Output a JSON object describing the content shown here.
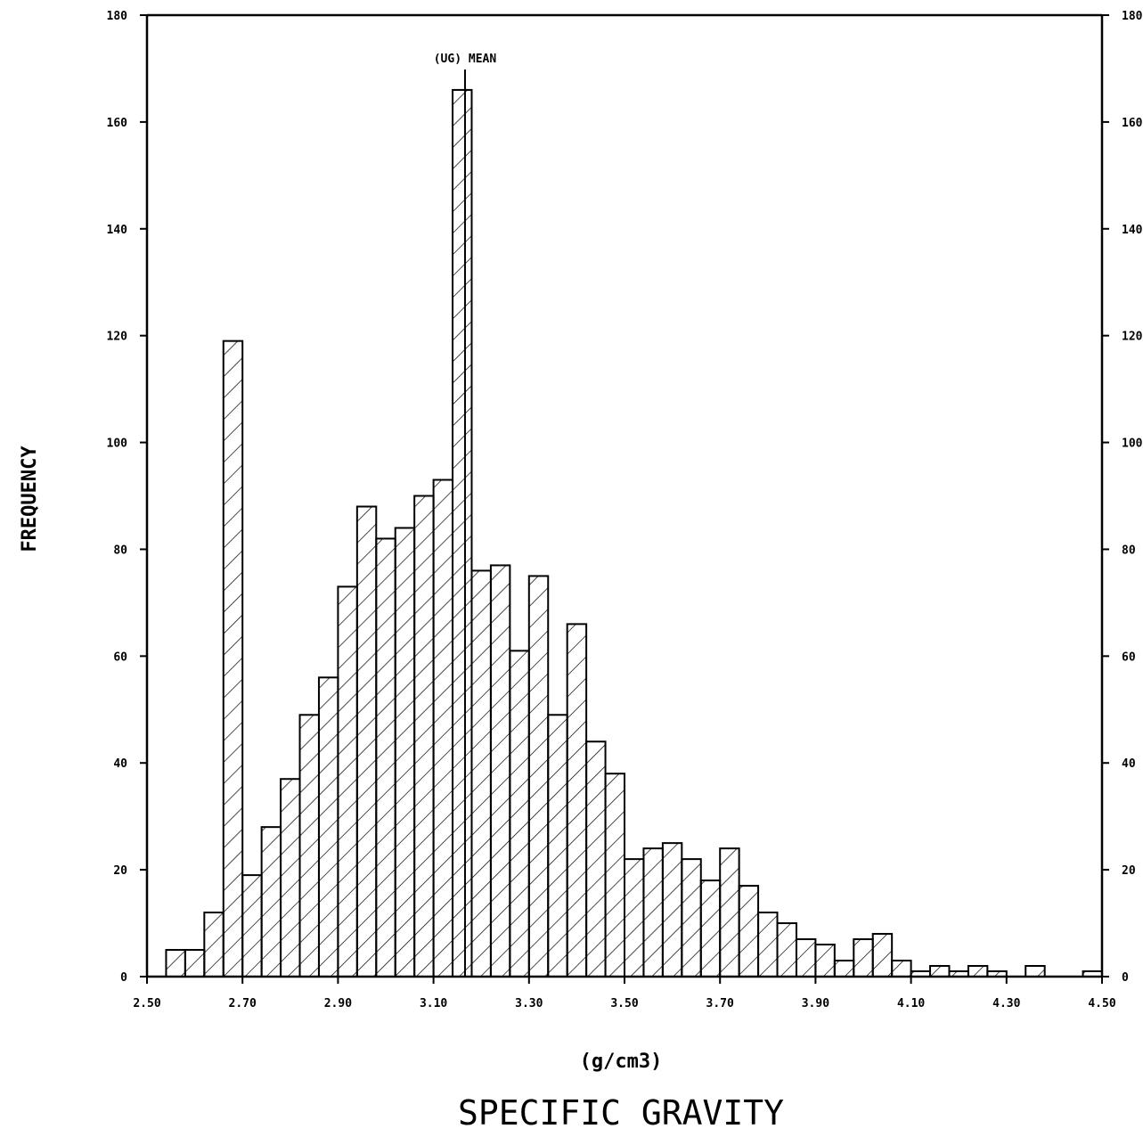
{
  "chart_data": {
    "type": "bar",
    "title": "SPECIFIC GRAVITY",
    "xlabel": "(g/cm3)",
    "ylabel": "FREQUENCY",
    "xlim": [
      2.5,
      4.5
    ],
    "ylim": [
      0,
      180
    ],
    "x_ticks": [
      "2.50",
      "2.70",
      "2.90",
      "3.10",
      "3.30",
      "3.50",
      "3.70",
      "3.90",
      "4.10",
      "4.30",
      "4.50"
    ],
    "x_tick_values": [
      2.5,
      2.7,
      2.9,
      3.1,
      3.3,
      3.5,
      3.7,
      3.9,
      4.1,
      4.3,
      4.5
    ],
    "y_ticks": [
      "0",
      "20",
      "40",
      "60",
      "80",
      "100",
      "120",
      "140",
      "160",
      "180"
    ],
    "y_tick_values": [
      0,
      20,
      40,
      60,
      80,
      100,
      120,
      140,
      160,
      180
    ],
    "bin_width": 0.04,
    "bin_start": 2.54,
    "values": [
      5,
      5,
      12,
      119,
      19,
      28,
      37,
      49,
      56,
      73,
      88,
      82,
      84,
      90,
      93,
      166,
      76,
      77,
      61,
      75,
      49,
      66,
      44,
      38,
      22,
      24,
      25,
      22,
      18,
      24,
      17,
      12,
      10,
      7,
      6,
      3,
      7,
      8,
      3,
      1,
      2,
      1,
      2,
      1,
      0,
      2,
      0,
      0,
      1
    ],
    "annotation": {
      "label": "(UG) MEAN",
      "x": 3.166
    },
    "grid": false,
    "hatch": "diagonal"
  }
}
